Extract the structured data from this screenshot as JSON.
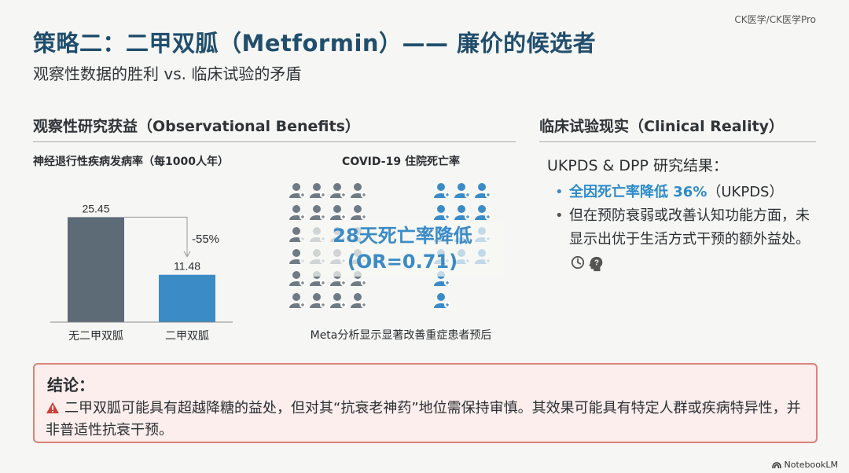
{
  "watermark": "CK医学/CK医学Pro",
  "title": "策略二：二甲双胍（Metformin）—— 廉价的候选者",
  "subtitle": "观察性数据的胜利 vs. 临床试验的矛盾",
  "left_section": {
    "title": "观察性研究获益（Observational Benefits）",
    "chart_title": "神经退行性疾病发病率（每1000人年）",
    "covid": {
      "title": "COVID-19 住院死亡率",
      "overlay_line1": "28天死亡率降低",
      "overlay_line2": "(OR=0.71)",
      "caption": "Meta分析显示显著改善重症患者预后",
      "left_grid_rows": 6,
      "left_grid_cols": 4,
      "right_grid_rows": 6,
      "right_grid_cols": 3,
      "colors": {
        "gray": "#6e7b85",
        "blue": "#3b8bc6"
      }
    }
  },
  "chart_data": {
    "type": "bar",
    "categories": [
      "无二甲双胍",
      "二甲双胍"
    ],
    "values": [
      25.45,
      11.48
    ],
    "value_labels": [
      "25.45",
      "11.48"
    ],
    "annotation": "-55%",
    "colors": [
      "#5c6b76",
      "#3b8bc6"
    ],
    "ylim": [
      0,
      30
    ]
  },
  "right_section": {
    "title": "临床试验现实（Clinical Reality）",
    "heading": "UKPDS & DPP 研究结果：",
    "bullet1": "全因死亡率降低 36%",
    "bullet1_suffix": "（UKPDS）",
    "bullet2": "但在预防衰弱或改善认知功能方面，未显示出优于生活方式干预的额外益处。",
    "icons": [
      "clock-icon",
      "brain-head-icon"
    ]
  },
  "conclusion": {
    "title": "结论：",
    "body": "二甲双胍可能具有超越降糖的益处，但对其“抗衰老神药”地位需保持审慎。其效果可能具有特定人群或疾病特异性，并非普适性抗衰干预。"
  },
  "brand": "NotebookLM",
  "colors": {
    "title": "#214e6d",
    "accent": "#3b8bc6",
    "conclusion_border": "#d9837a",
    "conclusion_bg": "#fbeeec"
  }
}
